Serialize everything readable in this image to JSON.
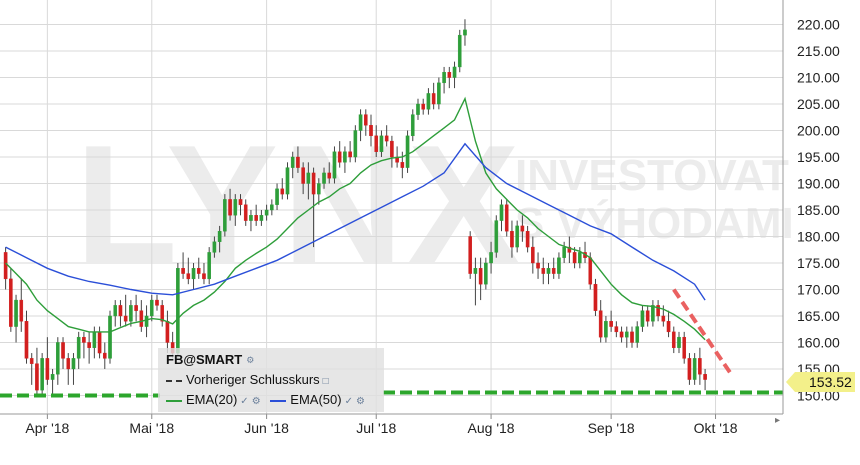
{
  "chart_data": {
    "type": "candlestick",
    "symbol_label": "FB@SMART",
    "ylim": [
      146.5,
      223.5
    ],
    "y_ticks": [
      "150.00",
      "155.00",
      "160.00",
      "165.00",
      "170.00",
      "175.00",
      "180.00",
      "185.00",
      "190.00",
      "195.00",
      "200.00",
      "205.00",
      "210.00",
      "215.00",
      "220.00"
    ],
    "y_tick_values": [
      150,
      155,
      160,
      165,
      170,
      175,
      180,
      185,
      190,
      195,
      200,
      205,
      210,
      215,
      220
    ],
    "x_ticks": [
      {
        "label": "Apr '18",
        "index": 8
      },
      {
        "label": "Mai '18",
        "index": 28
      },
      {
        "label": "Jun '18",
        "index": 50
      },
      {
        "label": "Jul '18",
        "index": 71
      },
      {
        "label": "Aug '18",
        "index": 93
      },
      {
        "label": "Sep '18",
        "index": 116
      },
      {
        "label": "Okt '18",
        "index": 136
      }
    ],
    "candle_count": 150,
    "candles": [
      [
        0,
        177,
        178,
        170,
        172
      ],
      [
        1,
        172,
        174,
        162,
        163
      ],
      [
        2,
        163,
        169,
        160,
        168
      ],
      [
        3,
        168,
        172,
        162,
        164
      ],
      [
        4,
        164,
        166,
        156,
        157
      ],
      [
        5,
        157,
        158,
        152,
        156
      ],
      [
        6,
        156,
        159,
        150,
        151
      ],
      [
        7,
        151,
        158,
        150,
        157
      ],
      [
        8,
        157,
        161,
        152,
        153
      ],
      [
        9,
        153,
        155,
        150,
        154
      ],
      [
        10,
        154,
        161,
        152,
        160
      ],
      [
        11,
        160,
        161,
        155,
        157
      ],
      [
        12,
        157,
        158,
        152,
        155
      ],
      [
        13,
        155,
        158,
        152,
        157
      ],
      [
        14,
        157,
        162,
        155,
        161
      ],
      [
        15,
        161,
        162,
        157,
        160
      ],
      [
        16,
        160,
        162,
        156,
        159
      ],
      [
        17,
        159,
        163,
        157,
        162
      ],
      [
        18,
        162,
        163,
        157,
        158
      ],
      [
        19,
        158,
        160,
        155,
        157
      ],
      [
        20,
        157,
        166,
        156,
        165
      ],
      [
        21,
        165,
        168,
        163,
        167
      ],
      [
        22,
        167,
        168,
        163,
        165
      ],
      [
        23,
        165,
        169,
        163,
        164
      ],
      [
        24,
        164,
        168,
        163,
        167
      ],
      [
        25,
        167,
        169,
        164,
        166
      ],
      [
        26,
        166,
        168,
        162,
        163
      ],
      [
        27,
        163,
        167,
        161,
        165
      ],
      [
        28,
        165,
        169,
        164,
        168
      ],
      [
        29,
        168,
        169,
        166,
        167
      ],
      [
        30,
        167,
        168,
        163,
        164
      ],
      [
        31,
        164,
        166,
        158,
        160
      ],
      [
        32,
        160,
        162,
        157,
        158
      ],
      [
        33,
        158,
        175,
        157,
        174
      ],
      [
        34,
        174,
        177,
        172,
        173
      ],
      [
        35,
        173,
        176,
        171,
        172
      ],
      [
        36,
        172,
        175,
        170,
        174
      ],
      [
        37,
        174,
        176,
        172,
        173
      ],
      [
        38,
        173,
        175,
        171,
        172
      ],
      [
        39,
        172,
        178,
        171,
        177
      ],
      [
        40,
        177,
        180,
        176,
        179
      ],
      [
        41,
        179,
        182,
        177,
        181
      ],
      [
        42,
        181,
        188,
        180,
        187
      ],
      [
        43,
        187,
        189,
        183,
        184
      ],
      [
        44,
        184,
        188,
        182,
        187
      ],
      [
        45,
        187,
        188,
        184,
        186
      ],
      [
        46,
        186,
        187,
        182,
        183
      ],
      [
        47,
        183,
        185,
        181,
        184
      ],
      [
        48,
        184,
        186,
        182,
        183
      ],
      [
        49,
        183,
        185,
        182,
        184
      ],
      [
        50,
        184,
        186,
        183,
        185
      ],
      [
        51,
        185,
        187,
        184,
        186
      ],
      [
        52,
        186,
        190,
        185,
        189
      ],
      [
        53,
        189,
        191,
        187,
        188
      ],
      [
        54,
        188,
        194,
        187,
        193
      ],
      [
        55,
        193,
        196,
        191,
        195
      ],
      [
        56,
        195,
        197,
        192,
        193
      ],
      [
        57,
        193,
        194,
        188,
        190
      ],
      [
        58,
        190,
        194,
        187,
        192
      ],
      [
        59,
        192,
        193,
        178,
        188
      ],
      [
        60,
        188,
        191,
        186,
        190
      ],
      [
        61,
        190,
        193,
        189,
        192
      ],
      [
        62,
        192,
        194,
        190,
        191
      ],
      [
        63,
        191,
        197,
        190,
        196
      ],
      [
        64,
        196,
        198,
        193,
        194
      ],
      [
        65,
        194,
        197,
        192,
        196
      ],
      [
        66,
        196,
        198,
        194,
        195
      ],
      [
        67,
        195,
        201,
        194,
        200
      ],
      [
        68,
        200,
        204,
        198,
        203
      ],
      [
        69,
        203,
        204,
        199,
        201
      ],
      [
        70,
        201,
        203,
        197,
        199
      ],
      [
        71,
        199,
        201,
        195,
        196
      ],
      [
        72,
        196,
        200,
        195,
        199
      ],
      [
        73,
        199,
        201,
        197,
        198
      ],
      [
        74,
        198,
        199,
        193,
        195
      ],
      [
        75,
        195,
        197,
        193,
        194
      ],
      [
        76,
        194,
        196,
        191,
        193
      ],
      [
        77,
        193,
        200,
        192,
        199
      ],
      [
        78,
        199,
        204,
        198,
        203
      ],
      [
        79,
        203,
        206,
        202,
        205
      ],
      [
        80,
        205,
        206,
        203,
        204
      ],
      [
        81,
        204,
        208,
        203,
        207
      ],
      [
        82,
        207,
        209,
        204,
        205
      ],
      [
        83,
        205,
        210,
        204,
        209
      ],
      [
        84,
        209,
        212,
        207,
        211
      ],
      [
        85,
        211,
        212,
        208,
        210
      ],
      [
        86,
        210,
        213,
        208,
        212
      ],
      [
        87,
        212,
        219,
        211,
        218
      ],
      [
        88,
        218,
        221,
        216,
        219
      ],
      [
        89,
        180,
        181,
        172,
        173
      ],
      [
        90,
        173,
        176,
        167,
        174
      ],
      [
        91,
        174,
        176,
        168,
        171
      ],
      [
        92,
        171,
        176,
        170,
        175
      ],
      [
        93,
        175,
        179,
        173,
        177
      ],
      [
        94,
        177,
        184,
        176,
        183
      ],
      [
        95,
        183,
        187,
        181,
        186
      ],
      [
        96,
        186,
        187,
        180,
        181
      ],
      [
        97,
        181,
        183,
        176,
        178
      ],
      [
        98,
        178,
        183,
        177,
        182
      ],
      [
        99,
        182,
        184,
        179,
        181
      ],
      [
        100,
        181,
        182,
        177,
        178
      ],
      [
        101,
        178,
        180,
        173,
        175
      ],
      [
        102,
        175,
        177,
        172,
        174
      ],
      [
        103,
        174,
        176,
        171,
        173
      ],
      [
        104,
        173,
        175,
        171,
        174
      ],
      [
        105,
        174,
        176,
        172,
        173
      ],
      [
        106,
        173,
        177,
        172,
        176
      ],
      [
        107,
        176,
        179,
        175,
        178
      ],
      [
        108,
        178,
        180,
        175,
        177
      ],
      [
        109,
        177,
        178,
        174,
        175
      ],
      [
        110,
        175,
        178,
        174,
        177
      ],
      [
        111,
        177,
        179,
        175,
        176
      ],
      [
        112,
        176,
        177,
        170,
        171
      ],
      [
        113,
        171,
        172,
        165,
        166
      ],
      [
        114,
        166,
        168,
        160,
        161
      ],
      [
        115,
        161,
        165,
        160,
        164
      ],
      [
        116,
        164,
        166,
        162,
        163
      ],
      [
        117,
        163,
        164,
        161,
        162
      ],
      [
        118,
        162,
        163,
        160,
        161
      ],
      [
        119,
        161,
        163,
        159,
        162
      ],
      [
        120,
        162,
        163,
        159,
        160
      ],
      [
        121,
        160,
        164,
        159,
        163
      ],
      [
        122,
        163,
        167,
        162,
        166
      ],
      [
        123,
        166,
        167,
        163,
        164
      ],
      [
        124,
        164,
        168,
        163,
        167
      ],
      [
        125,
        167,
        168,
        164,
        165
      ],
      [
        126,
        165,
        167,
        163,
        164
      ],
      [
        127,
        164,
        166,
        161,
        162
      ],
      [
        128,
        162,
        163,
        158,
        159
      ],
      [
        129,
        159,
        162,
        158,
        161
      ],
      [
        130,
        161,
        162,
        156,
        157
      ],
      [
        131,
        157,
        158,
        152,
        153
      ],
      [
        132,
        153,
        158,
        152,
        157
      ],
      [
        133,
        157,
        159,
        152,
        154
      ],
      [
        134,
        154,
        155,
        151,
        153
      ]
    ],
    "series": [
      {
        "name": "EMA(20)",
        "color": "#2e9e3a",
        "values": [
          [
            0,
            175
          ],
          [
            2,
            173
          ],
          [
            4,
            171
          ],
          [
            6,
            168
          ],
          [
            8,
            166
          ],
          [
            10,
            164.5
          ],
          [
            12,
            163
          ],
          [
            14,
            162.5
          ],
          [
            16,
            162
          ],
          [
            18,
            162
          ],
          [
            20,
            162
          ],
          [
            22,
            162.8
          ],
          [
            24,
            163.6
          ],
          [
            26,
            164
          ],
          [
            28,
            164.5
          ],
          [
            30,
            164.3
          ],
          [
            32,
            163.5
          ],
          [
            34,
            165.5
          ],
          [
            36,
            167
          ],
          [
            38,
            168
          ],
          [
            40,
            169.5
          ],
          [
            42,
            171.5
          ],
          [
            44,
            174
          ],
          [
            46,
            175.5
          ],
          [
            48,
            176.8
          ],
          [
            50,
            178
          ],
          [
            52,
            179.5
          ],
          [
            54,
            181.5
          ],
          [
            56,
            183.5
          ],
          [
            58,
            185
          ],
          [
            60,
            186.5
          ],
          [
            62,
            187.5
          ],
          [
            64,
            189
          ],
          [
            66,
            190
          ],
          [
            68,
            192
          ],
          [
            70,
            193.5
          ],
          [
            72,
            194.3
          ],
          [
            74,
            194.8
          ],
          [
            76,
            195
          ],
          [
            78,
            196
          ],
          [
            80,
            197.5
          ],
          [
            82,
            199
          ],
          [
            84,
            200.5
          ],
          [
            86,
            202
          ],
          [
            88,
            206
          ],
          [
            90,
            198
          ],
          [
            92,
            192
          ],
          [
            94,
            189
          ],
          [
            96,
            187
          ],
          [
            98,
            185
          ],
          [
            100,
            183.5
          ],
          [
            102,
            181.5
          ],
          [
            104,
            180
          ],
          [
            106,
            178.5
          ],
          [
            108,
            177.8
          ],
          [
            110,
            177.2
          ],
          [
            112,
            176
          ],
          [
            114,
            173.5
          ],
          [
            116,
            171
          ],
          [
            118,
            169
          ],
          [
            120,
            167.5
          ],
          [
            122,
            167
          ],
          [
            124,
            166.8
          ],
          [
            126,
            166.3
          ],
          [
            128,
            165.3
          ],
          [
            130,
            164
          ],
          [
            132,
            162.5
          ],
          [
            134,
            160.5
          ]
        ]
      },
      {
        "name": "EMA(50)",
        "color": "#2b4fd8",
        "values": [
          [
            0,
            178
          ],
          [
            4,
            176
          ],
          [
            8,
            174
          ],
          [
            12,
            172.5
          ],
          [
            16,
            171.5
          ],
          [
            20,
            170.8
          ],
          [
            24,
            170
          ],
          [
            28,
            169.3
          ],
          [
            32,
            169
          ],
          [
            36,
            170
          ],
          [
            40,
            171
          ],
          [
            44,
            172.5
          ],
          [
            48,
            174
          ],
          [
            52,
            175.5
          ],
          [
            56,
            177.5
          ],
          [
            60,
            179.5
          ],
          [
            64,
            181.5
          ],
          [
            68,
            183.5
          ],
          [
            72,
            185.5
          ],
          [
            76,
            187.5
          ],
          [
            80,
            189.5
          ],
          [
            84,
            192
          ],
          [
            88,
            197.5
          ],
          [
            92,
            193
          ],
          [
            96,
            190
          ],
          [
            100,
            188
          ],
          [
            104,
            186
          ],
          [
            108,
            184
          ],
          [
            112,
            182
          ],
          [
            116,
            180.5
          ],
          [
            120,
            178
          ],
          [
            124,
            175.5
          ],
          [
            128,
            173.5
          ],
          [
            132,
            171
          ],
          [
            134,
            168
          ]
        ]
      }
    ],
    "support_line": [
      150,
      "#2ca62c"
    ],
    "trend_line": {
      "from": [
        128,
        170
      ],
      "to": [
        139,
        154
      ],
      "color": "#e85050"
    },
    "last_price": "153.52"
  },
  "legend": {
    "title": "FB@SMART",
    "prev_close": "Vorheriger Schlusskurs",
    "ema20": "EMA(20)",
    "ema50": "EMA(50)"
  },
  "watermark": {
    "brand": "LYNX",
    "line1": "INVESTOVAT",
    "line2": "S VÝHODAMI"
  }
}
